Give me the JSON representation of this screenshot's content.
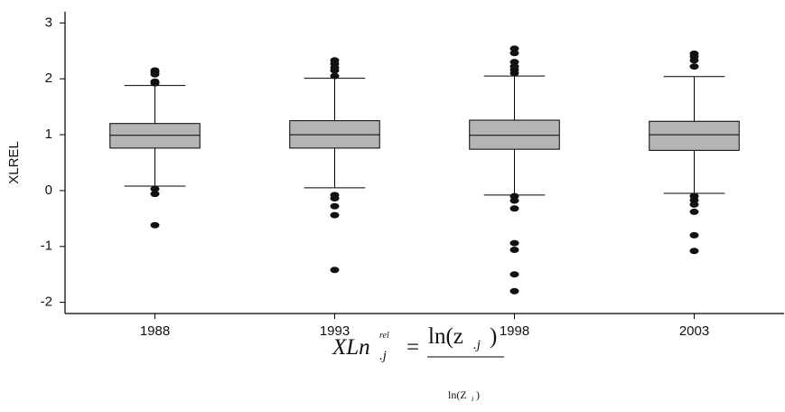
{
  "chart_data": {
    "type": "box",
    "y_label": "XLREL",
    "x_label": {
      "lhs": "XLn",
      "sup": "rel",
      "sub": ".j",
      "eq": "=",
      "numerator": {
        "text": "ln(z",
        "sub": ".j",
        "close": ")"
      },
      "denominator": {
        "text": "ln(Z",
        "sub": "i",
        "close": ")"
      }
    },
    "categories": [
      "1988",
      "1993",
      "1998",
      "2003"
    ],
    "boxes": [
      {
        "whislo": 0.08,
        "q1": 0.76,
        "med": 0.99,
        "q3": 1.2,
        "whishi": 1.88,
        "fliers": [
          2.15,
          2.12,
          2.08,
          1.95,
          1.92,
          0.03,
          -0.06,
          -0.62
        ]
      },
      {
        "whislo": 0.05,
        "q1": 0.76,
        "med": 1.0,
        "q3": 1.25,
        "whishi": 2.01,
        "fliers": [
          2.33,
          2.27,
          2.2,
          2.15,
          2.05,
          -0.08,
          -0.14,
          -0.28,
          -0.44,
          -1.42
        ]
      },
      {
        "whislo": -0.08,
        "q1": 0.74,
        "med": 0.99,
        "q3": 1.26,
        "whishi": 2.05,
        "fliers": [
          2.54,
          2.46,
          2.3,
          2.22,
          2.16,
          2.1,
          -0.1,
          -0.18,
          -0.32,
          -0.94,
          -1.06,
          -1.5,
          -1.8
        ]
      },
      {
        "whislo": -0.05,
        "q1": 0.72,
        "med": 1.0,
        "q3": 1.24,
        "whishi": 2.04,
        "fliers": [
          2.45,
          2.4,
          2.33,
          2.22,
          -0.1,
          -0.17,
          -0.25,
          -0.38,
          -0.8,
          -1.08
        ]
      }
    ],
    "box_color": "#b5b5b8",
    "ylim": [
      -2.2,
      3.2
    ],
    "yticks": [
      -2,
      -1,
      0,
      1,
      2,
      3
    ]
  }
}
